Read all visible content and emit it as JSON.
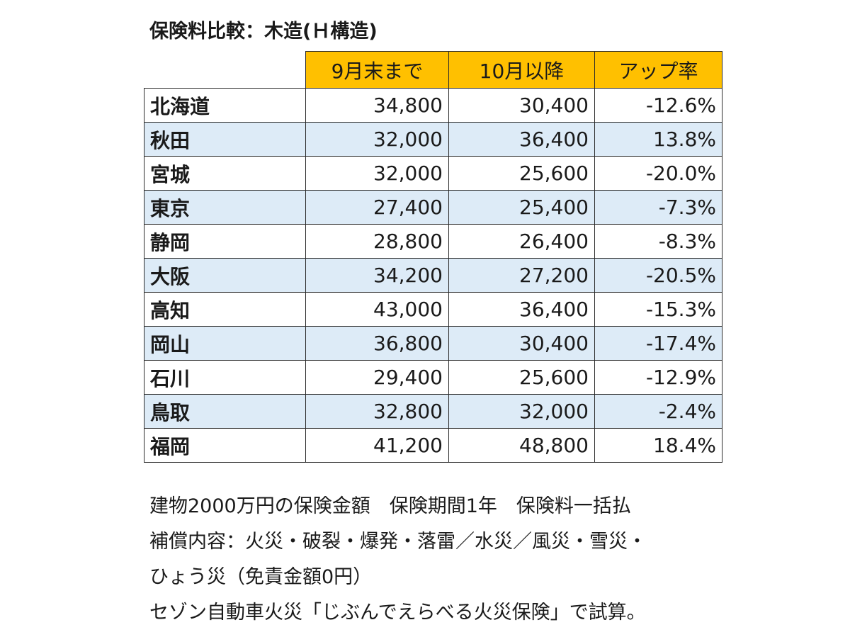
{
  "title": "保険料比較：木造(Ｈ構造)",
  "table": {
    "headers": [
      "9月末まで",
      "10月以降",
      "アップ率"
    ],
    "rows": [
      {
        "pref": "北海道",
        "before": "34,800",
        "after": "30,400",
        "rate": "-12.6%"
      },
      {
        "pref": "秋田",
        "before": "32,000",
        "after": "36,400",
        "rate": "13.8%"
      },
      {
        "pref": "宮城",
        "before": "32,000",
        "after": "25,600",
        "rate": "-20.0%"
      },
      {
        "pref": "東京",
        "before": "27,400",
        "after": "25,400",
        "rate": "-7.3%"
      },
      {
        "pref": "静岡",
        "before": "28,800",
        "after": "26,400",
        "rate": "-8.3%"
      },
      {
        "pref": "大阪",
        "before": "34,200",
        "after": "27,200",
        "rate": "-20.5%"
      },
      {
        "pref": "高知",
        "before": "43,000",
        "after": "36,400",
        "rate": "-15.3%"
      },
      {
        "pref": "岡山",
        "before": "36,800",
        "after": "30,400",
        "rate": "-17.4%"
      },
      {
        "pref": "石川",
        "before": "29,400",
        "after": "25,600",
        "rate": "-12.9%"
      },
      {
        "pref": "鳥取",
        "before": "32,800",
        "after": "32,000",
        "rate": "-2.4%"
      },
      {
        "pref": "福岡",
        "before": "41,200",
        "after": "48,800",
        "rate": "18.4%"
      }
    ]
  },
  "notes": [
    "建物2000万円の保険金額　保険期間1年　保険料一括払",
    "補償内容：火災・破裂・爆発・落雷／水災／風災・雪災・",
    "ひょう災（免責金額0円）",
    "セゾン自動車火災「じぶんでえらべる火災保険」で試算。"
  ],
  "colors": {
    "header_bg": "#ffc000",
    "shaded_row_bg": "#ddebf7",
    "border": "#2b2b2b"
  }
}
